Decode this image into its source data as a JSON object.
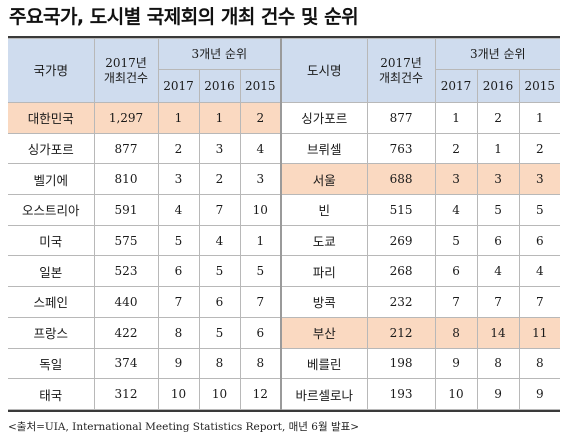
{
  "title": "주요국가, 도시별 국제회의 개최 건수 및 순위",
  "header": {
    "country": "국가명",
    "count_line1": "2017년",
    "count_line2": "개최건수",
    "rank_group": "3개년 순위",
    "years": [
      "2017",
      "2016",
      "2015"
    ],
    "city": "도시명"
  },
  "rows": [
    {
      "country": "대한민국",
      "count": "1,297",
      "r2017": "1",
      "r2016": "1",
      "r2015": "2",
      "city": "싱가포르",
      "city_count": "877",
      "c2017": "1",
      "c2016": "2",
      "c2015": "1"
    },
    {
      "country": "싱가포르",
      "count": "877",
      "r2017": "2",
      "r2016": "3",
      "r2015": "4",
      "city": "브뤼셀",
      "city_count": "763",
      "c2017": "2",
      "c2016": "1",
      "c2015": "2"
    },
    {
      "country": "벨기에",
      "count": "810",
      "r2017": "3",
      "r2016": "2",
      "r2015": "3",
      "city": "서울",
      "city_count": "688",
      "c2017": "3",
      "c2016": "3",
      "c2015": "3"
    },
    {
      "country": "오스트리아",
      "count": "591",
      "r2017": "4",
      "r2016": "7",
      "r2015": "10",
      "city": "빈",
      "city_count": "515",
      "c2017": "4",
      "c2016": "5",
      "c2015": "5"
    },
    {
      "country": "미국",
      "count": "575",
      "r2017": "5",
      "r2016": "4",
      "r2015": "1",
      "city": "도쿄",
      "city_count": "269",
      "c2017": "5",
      "c2016": "6",
      "c2015": "6"
    },
    {
      "country": "일본",
      "count": "523",
      "r2017": "6",
      "r2016": "5",
      "r2015": "5",
      "city": "파리",
      "city_count": "268",
      "c2017": "6",
      "c2016": "4",
      "c2015": "4"
    },
    {
      "country": "스페인",
      "count": "440",
      "r2017": "7",
      "r2016": "6",
      "r2015": "7",
      "city": "방콕",
      "city_count": "232",
      "c2017": "7",
      "c2016": "7",
      "c2015": "7"
    },
    {
      "country": "프랑스",
      "count": "422",
      "r2017": "8",
      "r2016": "5",
      "r2015": "6",
      "city": "부산",
      "city_count": "212",
      "c2017": "8",
      "c2016": "14",
      "c2015": "11"
    },
    {
      "country": "독일",
      "count": "374",
      "r2017": "9",
      "r2016": "8",
      "r2015": "8",
      "city": "베를린",
      "city_count": "198",
      "c2017": "9",
      "c2016": "8",
      "c2015": "8"
    },
    {
      "country": "태국",
      "count": "312",
      "r2017": "10",
      "r2016": "10",
      "r2015": "12",
      "city": "바르셀로나",
      "city_count": "193",
      "c2017": "10",
      "c2016": "9",
      "c2015": "9"
    }
  ],
  "highlight_color": "#fad9c1",
  "header_color": "#cfdcee",
  "source": "<출처=UIA, International Meeting Statistics Report, 매년 6월 발표>"
}
